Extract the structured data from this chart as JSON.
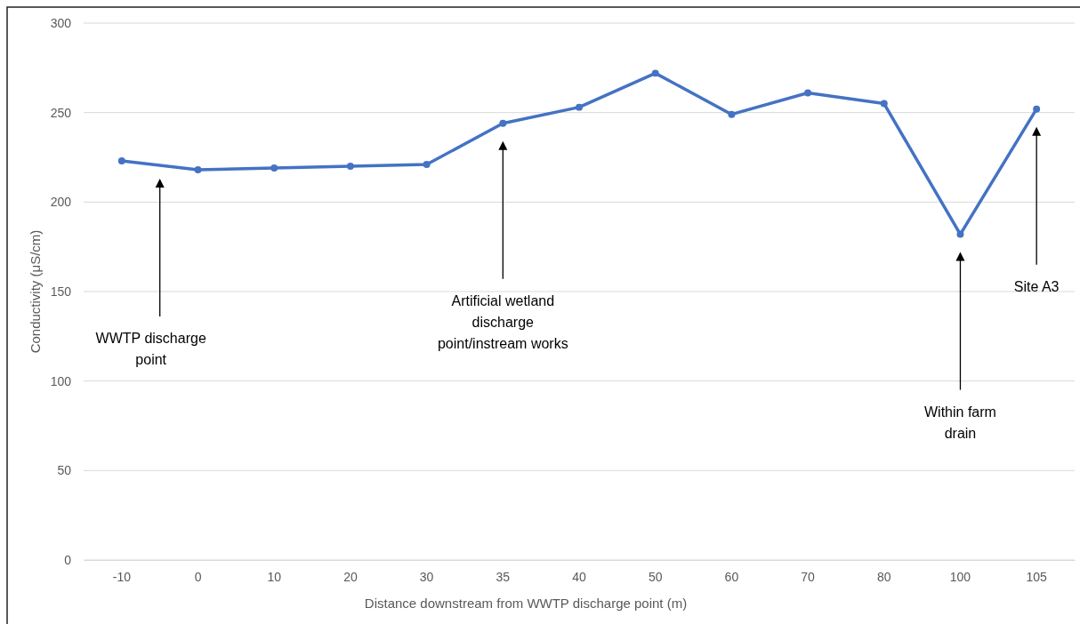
{
  "chart_data": {
    "type": "line",
    "xlabel": "Distance downstream from WWTP discharge point (m)",
    "ylabel": "Conductivity (μS/cm)",
    "categories": [
      "-10",
      "0",
      "10",
      "20",
      "30",
      "35",
      "40",
      "50",
      "60",
      "70",
      "80",
      "100",
      "105"
    ],
    "series": [
      {
        "color": "#4472c4",
        "values": [
          223,
          218,
          219,
          220,
          221,
          244,
          253,
          272,
          249,
          261,
          255,
          182,
          252
        ]
      }
    ],
    "ylim": [
      0,
      300
    ],
    "yticks": [
      0,
      50,
      100,
      150,
      200,
      250,
      300
    ],
    "grid": "y",
    "marker": "circle",
    "line_style": "solid",
    "annotations": [
      "WWTP discharge\npoint",
      "Artificial wetland\ndischarge\npoint/instream works",
      "Within farm\ndrain",
      "Site A3"
    ]
  }
}
